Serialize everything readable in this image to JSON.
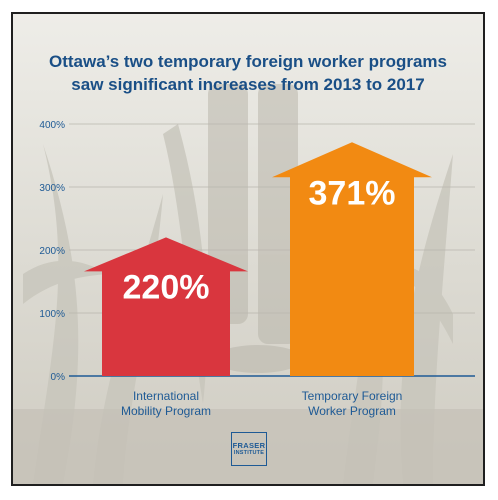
{
  "title_line1": "Ottawa’s two temporary foreign worker programs",
  "title_line2": "saw significant increases from 2013 to 2017",
  "logo": {
    "line1": "FRASER",
    "line2": "INSTITUTE"
  },
  "colors": {
    "title": "#1a4f86",
    "axis": "#1e5a95",
    "bar1": "#d9363e",
    "bar2": "#f28a12",
    "value_text": "#ffffff"
  },
  "chart_data": {
    "type": "bar",
    "categories": [
      "International Mobility Program",
      "Temporary Foreign Worker Program"
    ],
    "values": [
      220,
      371
    ],
    "value_labels": [
      "220%",
      "371%"
    ],
    "yticks": [
      "0%",
      "100%",
      "200%",
      "300%",
      "400%"
    ],
    "ylim": [
      0,
      400
    ],
    "grid": true,
    "title": "Ottawa’s two temporary foreign worker programs saw significant increases from 2013 to 2017"
  },
  "category_labels": [
    {
      "line1": "International",
      "line2": "Mobility Program"
    },
    {
      "line1": "Temporary Foreign",
      "line2": "Worker Program"
    }
  ]
}
